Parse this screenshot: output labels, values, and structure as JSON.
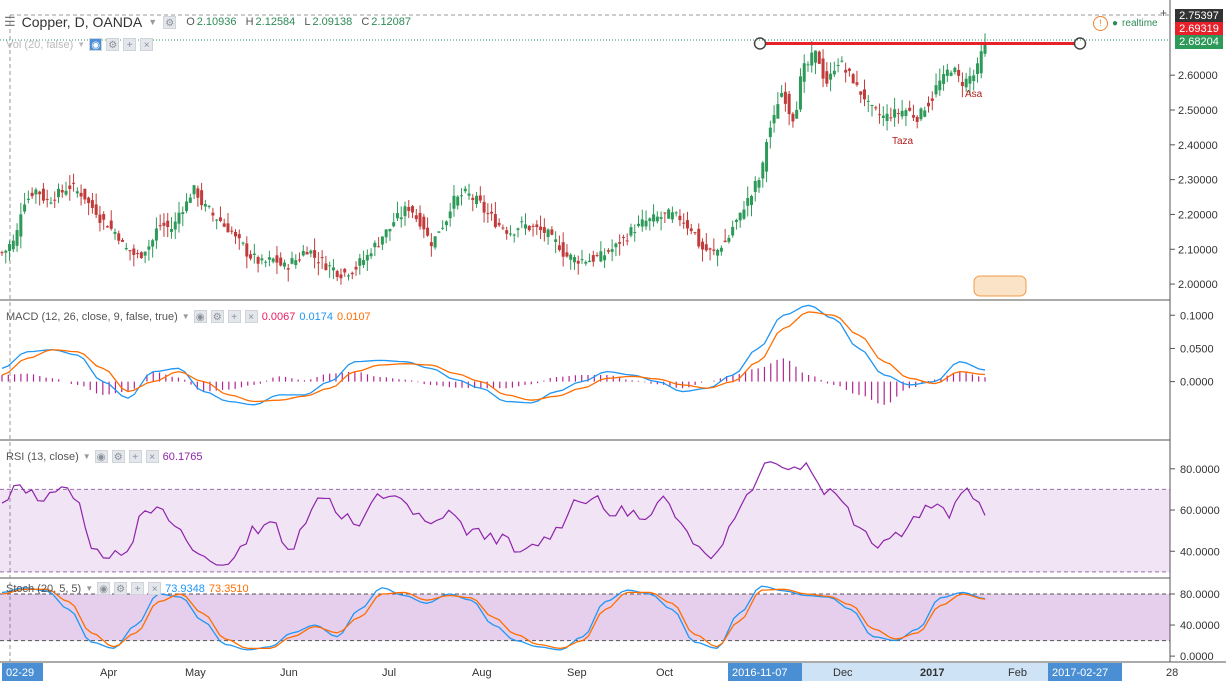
{
  "header": {
    "symbol": "Copper, D, OANDA",
    "ohlc": {
      "o_label": "O",
      "o": "2.10936",
      "h_label": "H",
      "h": "2.12584",
      "l_label": "L",
      "l": "2.09138",
      "c_label": "C",
      "c": "2.12087"
    },
    "vol_label": "Vol (20, false)",
    "realtime": "realtime",
    "warning_icon": "warning-icon"
  },
  "price_tags": {
    "high": "2.75397",
    "alert": "2.69319",
    "last": "2.68204"
  },
  "macd": {
    "label": "MACD (12, 26, close, 9, false, true)",
    "hist": "0.0067",
    "macd": "0.0174",
    "signal": "0.0107"
  },
  "rsi": {
    "label": "RSI (13, close)",
    "value": "60.1765"
  },
  "stoch": {
    "label": "Stoch (20, 5, 5)",
    "k": "73.9348",
    "d": "73.3510"
  },
  "annotations": {
    "taza": "Taza",
    "asa": "Asa"
  },
  "time_axis": {
    "labels": [
      "02-29",
      "Apr",
      "May",
      "Jun",
      "Jul",
      "Aug",
      "Sep",
      "Oct",
      "2016-11-07",
      "Dec",
      "2017",
      "Feb",
      "2017-02-27",
      "28"
    ],
    "highlight_start": "2016-11-07",
    "highlight_end": "2017-02-27"
  },
  "colors": {
    "up": "#2e9a5a",
    "down": "#c23b3b",
    "macd": "#2196f3",
    "signal": "#ff6d00",
    "hist": "#b0268f",
    "rsi": "#8e24aa",
    "line": "#e8202a"
  },
  "chart_data": [
    {
      "type": "candlestick",
      "title": "Copper, D, OANDA",
      "ylim": [
        1.96,
        2.77
      ],
      "yticks": [
        2.0,
        2.1,
        2.2,
        2.3,
        2.4,
        2.5,
        2.6
      ],
      "ytick_labels": [
        "2.00000",
        "2.10000",
        "2.20000",
        "2.30000",
        "2.40000",
        "2.50000",
        "2.60000"
      ],
      "resistance_level": 2.691,
      "close_path": [
        2.09,
        2.12,
        2.24,
        2.27,
        2.24,
        2.26,
        2.28,
        2.26,
        2.22,
        2.18,
        2.15,
        2.1,
        2.08,
        2.11,
        2.17,
        2.16,
        2.22,
        2.27,
        2.22,
        2.19,
        2.16,
        2.12,
        2.08,
        2.06,
        2.07,
        2.05,
        2.07,
        2.1,
        2.07,
        2.05,
        2.03,
        2.04,
        2.07,
        2.11,
        2.15,
        2.19,
        2.22,
        2.18,
        2.12,
        2.17,
        2.24,
        2.26,
        2.24,
        2.2,
        2.17,
        2.15,
        2.17,
        2.16,
        2.15,
        2.12,
        2.08,
        2.07,
        2.07,
        2.08,
        2.1,
        2.13,
        2.16,
        2.18,
        2.19,
        2.2,
        2.19,
        2.16,
        2.1,
        2.09,
        2.12,
        2.18,
        2.24,
        2.3,
        2.45,
        2.55,
        2.48,
        2.62,
        2.66,
        2.58,
        2.64,
        2.6,
        2.55,
        2.5,
        2.48,
        2.49,
        2.5,
        2.48,
        2.52,
        2.58,
        2.62,
        2.58,
        2.6,
        2.68
      ],
      "annotations": [
        "Taza",
        "Asa"
      ]
    },
    {
      "type": "line",
      "name": "MACD (12, 26, close, 9, false, true)",
      "ylim": [
        -0.085,
        0.12
      ],
      "yticks": [
        0.0,
        0.05,
        0.1
      ],
      "ytick_labels": [
        "0.0000",
        "0.0500",
        "0.1000"
      ],
      "series": [
        {
          "name": "macd",
          "values": [
            0.02,
            0.045,
            0.048,
            0.04,
            0.0,
            -0.025,
            0.015,
            0.02,
            -0.015,
            -0.03,
            -0.035,
            -0.02,
            -0.02,
            0.0,
            0.03,
            0.032,
            0.03,
            0.02,
            0.003,
            -0.01,
            -0.03,
            -0.032,
            -0.015,
            0.0,
            0.015,
            0.01,
            0.0,
            -0.015,
            -0.01,
            0.01,
            0.05,
            0.1,
            0.115,
            0.095,
            0.05,
            0.01,
            -0.005,
            0.0,
            0.03,
            0.0174
          ]
        },
        {
          "name": "signal",
          "values": [
            0.01,
            0.035,
            0.048,
            0.045,
            0.02,
            -0.015,
            0.0,
            0.015,
            0.0,
            -0.02,
            -0.03,
            -0.028,
            -0.022,
            -0.01,
            0.015,
            0.025,
            0.027,
            0.025,
            0.012,
            0.0,
            -0.02,
            -0.028,
            -0.022,
            -0.01,
            0.005,
            0.008,
            0.004,
            -0.005,
            -0.01,
            0.0,
            0.03,
            0.08,
            0.105,
            0.1,
            0.07,
            0.03,
            0.005,
            -0.003,
            0.015,
            0.0107
          ]
        },
        {
          "name": "histogram",
          "values": [
            0.01,
            0.012,
            0.005,
            -0.005,
            -0.02,
            -0.015,
            0.015,
            0.006,
            -0.015,
            -0.012,
            -0.005,
            0.008,
            0.002,
            0.012,
            0.015,
            0.007,
            0.003,
            -0.005,
            -0.009,
            -0.01,
            -0.01,
            -0.004,
            0.007,
            0.01,
            0.01,
            0.002,
            -0.004,
            -0.01,
            0.0,
            0.01,
            0.02,
            0.035,
            0.01,
            -0.005,
            -0.02,
            -0.035,
            -0.01,
            0.003,
            0.015,
            0.0067
          ]
        }
      ]
    },
    {
      "type": "line",
      "name": "RSI (13, close)",
      "ylim": [
        28,
        93
      ],
      "yticks": [
        40,
        60,
        80
      ],
      "ytick_labels": [
        "40.0000",
        "60.0000",
        "80.0000"
      ],
      "bands": [
        30,
        70
      ],
      "values": [
        62,
        72,
        66,
        70,
        68,
        44,
        36,
        42,
        62,
        58,
        48,
        38,
        34,
        36,
        50,
        55,
        40,
        56,
        68,
        58,
        52,
        66,
        68,
        58,
        52,
        60,
        50,
        48,
        46,
        38,
        44,
        50,
        64,
        66,
        58,
        60,
        54,
        64,
        56,
        42,
        38,
        58,
        72,
        86,
        80,
        82,
        70,
        66,
        52,
        44,
        48,
        56,
        62,
        58,
        70,
        60.1765
      ]
    },
    {
      "type": "line",
      "name": "Stoch (20, 5, 5)",
      "ylim": [
        -5,
        98
      ],
      "yticks": [
        0,
        40,
        80
      ],
      "ytick_labels": [
        "0.0000",
        "40.0000",
        "80.0000"
      ],
      "bands": [
        20,
        80
      ],
      "series": [
        {
          "name": "k",
          "values": [
            82,
            88,
            84,
            60,
            18,
            10,
            40,
            80,
            76,
            45,
            15,
            8,
            12,
            30,
            40,
            25,
            60,
            88,
            78,
            68,
            80,
            72,
            40,
            20,
            12,
            8,
            25,
            70,
            85,
            80,
            60,
            18,
            10,
            55,
            90,
            84,
            78,
            76,
            60,
            25,
            20,
            35,
            75,
            82,
            73.9348
          ]
        },
        {
          "name": "d",
          "values": [
            80,
            86,
            86,
            70,
            30,
            12,
            30,
            70,
            80,
            55,
            22,
            10,
            10,
            25,
            38,
            30,
            50,
            80,
            82,
            72,
            78,
            75,
            50,
            28,
            15,
            10,
            20,
            60,
            82,
            82,
            68,
            28,
            12,
            45,
            85,
            86,
            80,
            77,
            66,
            35,
            22,
            30,
            65,
            80,
            73.351
          ]
        }
      ]
    }
  ]
}
